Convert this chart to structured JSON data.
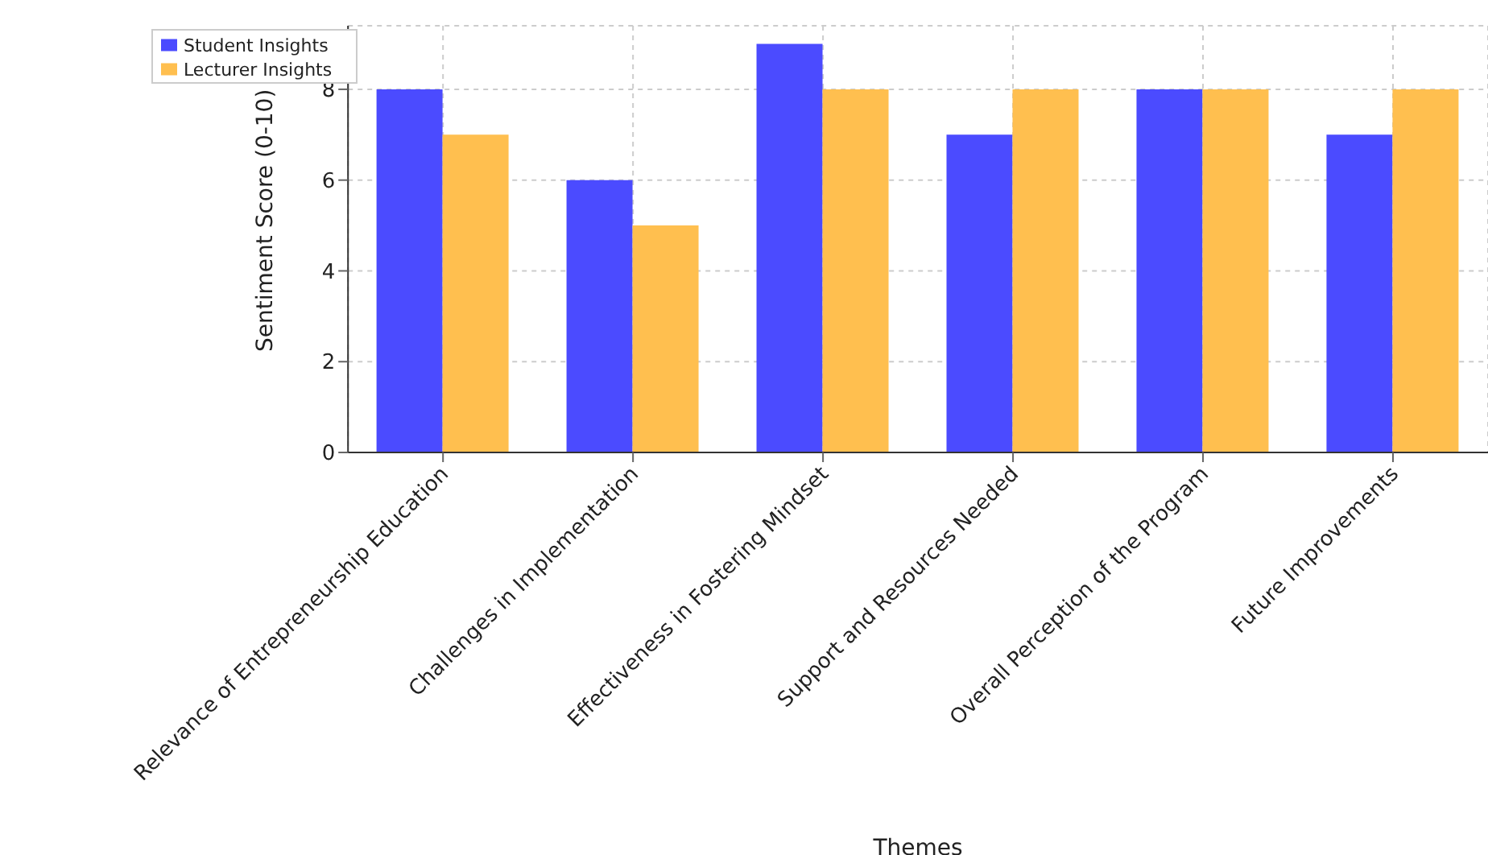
{
  "chart_data": {
    "type": "bar",
    "xlabel": "Themes",
    "ylabel": "Sentiment Score (0-10)",
    "categories": [
      "Relevance of Entrepreneurship Education",
      "Challenges in Implementation",
      "Effectiveness in Fostering Mindset",
      "Support and Resources Needed",
      "Overall Perception of the Program",
      "Future Improvements"
    ],
    "series": [
      {
        "name": "Student Insights",
        "color": "#4b4bff",
        "values": [
          8,
          6,
          9,
          7,
          8,
          7
        ]
      },
      {
        "name": "Lecturer Insights",
        "color": "#ffbf4f",
        "values": [
          7,
          5,
          8,
          8,
          8,
          8
        ]
      }
    ],
    "ylim": [
      0,
      9.4
    ],
    "yticks": [
      0,
      2,
      4,
      6,
      8
    ],
    "grid": true,
    "legend": "top left"
  }
}
